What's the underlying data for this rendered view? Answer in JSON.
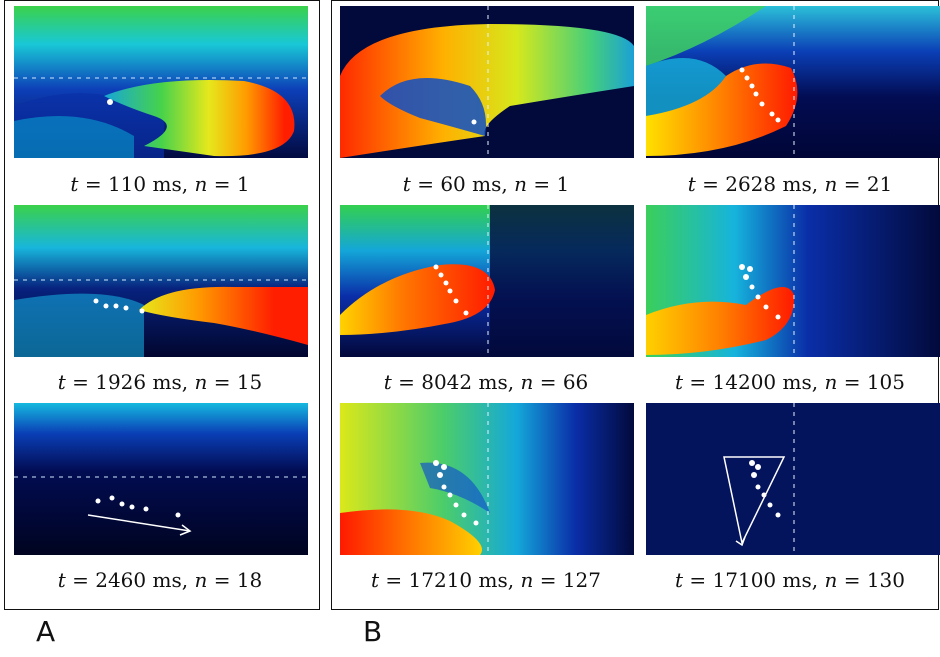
{
  "panels": {
    "a_label": "A",
    "b_label": "B",
    "a_frames": [
      {
        "t": "110",
        "n": "1"
      },
      {
        "t": "1926",
        "n": "15"
      },
      {
        "t": "2460",
        "n": "18"
      }
    ],
    "b_frames": [
      {
        "t": "60",
        "n": "1"
      },
      {
        "t": "2628",
        "n": "21"
      },
      {
        "t": "8042",
        "n": "66"
      },
      {
        "t": "14200",
        "n": "105"
      },
      {
        "t": "17210",
        "n": "127"
      },
      {
        "t": "17100",
        "n": "130"
      }
    ]
  },
  "caption_format": {
    "t_symbol": "t",
    "n_symbol": "n",
    "unit": "ms"
  },
  "colors": {
    "background": "#000a3a",
    "wave_front": "#ff1a00",
    "marker": "#ffffff"
  }
}
